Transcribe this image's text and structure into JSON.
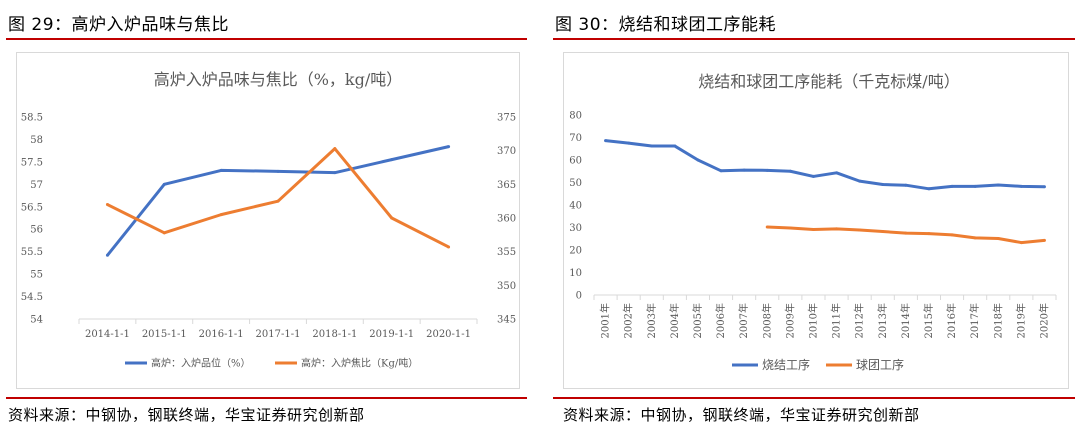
{
  "left_panel": {
    "heading": "图 29：高炉入炉品味与焦比",
    "source": "资料来源：中钢协，钢联终端，华宝证券研究创新部"
  },
  "right_panel": {
    "heading": "图 30：烧结和球团工序能耗",
    "source": "资料来源：中钢协，钢联终端，华宝证券研究创新部"
  },
  "colors": {
    "blue": "#4472c4",
    "orange": "#ed7d31",
    "accent_rule": "#c00000"
  },
  "chart_data": [
    {
      "type": "line",
      "title": "高炉入炉品味与焦比（%，kg/吨）",
      "categories": [
        "2014-1-1",
        "2015-1-1",
        "2016-1-1",
        "2017-1-1",
        "2018-1-1",
        "2019-1-1",
        "2020-1-1"
      ],
      "series": [
        {
          "name": "高炉：入炉品位（%）",
          "axis": "left",
          "color": "#4472c4",
          "values": [
            55.42,
            57.0,
            57.31,
            57.29,
            57.26,
            57.55,
            57.84
          ]
        },
        {
          "name": "高炉：入炉焦比（Kg/吨）",
          "axis": "right",
          "color": "#ed7d31",
          "values": [
            362.0,
            357.8,
            360.5,
            362.5,
            370.3,
            360.0,
            355.7
          ]
        }
      ],
      "y_left": {
        "min": 54,
        "max": 58.5,
        "step": 0.5,
        "ticks": [
          "54",
          "54.5",
          "55",
          "55.5",
          "56",
          "56.5",
          "57",
          "57.5",
          "58",
          "58.5"
        ]
      },
      "y_right": {
        "min": 345,
        "max": 375,
        "step": 5,
        "ticks": [
          "345",
          "350",
          "355",
          "360",
          "365",
          "370",
          "375"
        ]
      },
      "grid": false,
      "legend_position": "bottom"
    },
    {
      "type": "line",
      "title": "烧结和球团工序能耗（千克标煤/吨）",
      "categories": [
        "2001年",
        "2002年",
        "2003年",
        "2004年",
        "2005年",
        "2006年",
        "2007年",
        "2008年",
        "2009年",
        "2010年",
        "2011年",
        "2012年",
        "2013年",
        "2014年",
        "2015年",
        "2016年",
        "2017年",
        "2018年",
        "2019年",
        "2020年"
      ],
      "series": [
        {
          "name": "烧结工序",
          "color": "#4472c4",
          "values": [
            68.6,
            67.5,
            66.2,
            66.2,
            60.0,
            55.2,
            55.5,
            55.4,
            55.0,
            52.7,
            54.3,
            50.6,
            49.1,
            48.8,
            47.2,
            48.3,
            48.3,
            48.9,
            48.3,
            48.1
          ]
        },
        {
          "name": "球团工序",
          "color": "#ed7d31",
          "values": [
            null,
            null,
            null,
            null,
            null,
            null,
            null,
            30.2,
            29.8,
            29.1,
            29.4,
            28.9,
            28.2,
            27.5,
            27.3,
            26.7,
            25.4,
            25.1,
            23.3,
            24.3
          ]
        }
      ],
      "y": {
        "min": 0,
        "max": 80,
        "step": 10,
        "ticks": [
          "0",
          "10",
          "20",
          "30",
          "40",
          "50",
          "60",
          "70",
          "80"
        ]
      },
      "grid": false,
      "legend_position": "bottom"
    }
  ]
}
